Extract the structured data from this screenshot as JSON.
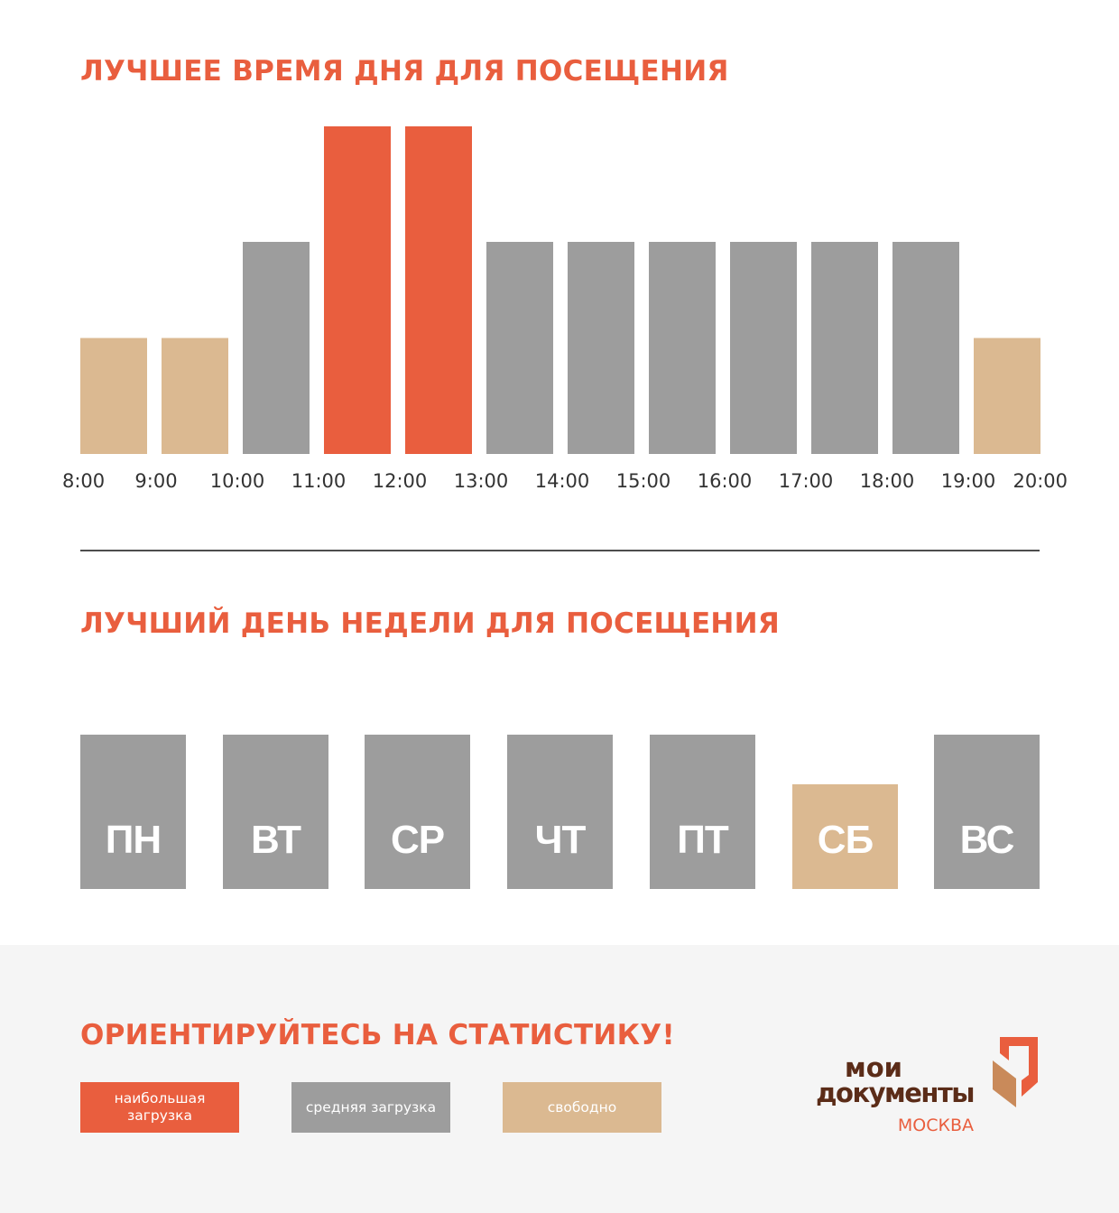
{
  "colors": {
    "accent": "#e95e3e",
    "busiest": "#e95e3e",
    "average": "#9d9d9d",
    "free": "#dbb991",
    "axis_text": "#333333",
    "divider": "#4d4d4d",
    "footer_bg": "#f5f5f5",
    "logo_brown": "#5b2c18",
    "logo_orange": "#e95e3e"
  },
  "hourly": {
    "title": "ЛУЧШЕЕ ВРЕМЯ ДНЯ ДЛЯ ПОСЕЩЕНИЯ"
  },
  "weekly": {
    "title": "ЛУЧШИЙ ДЕНЬ НЕДЕЛИ ДЛЯ ПОСЕЩЕНИЯ"
  },
  "footer": {
    "heading": "ОРИЕНТИРУЙТЕСЬ НА СТАТИСТИКУ!",
    "legend": [
      {
        "label": "наибольшая загрузка",
        "level": "busiest",
        "color": "#e95e3e"
      },
      {
        "label": "средняя загрузка",
        "level": "average",
        "color": "#9d9d9d"
      },
      {
        "label": "свободно",
        "level": "free",
        "color": "#dbb991"
      }
    ]
  },
  "logo": {
    "line1": "МОИ",
    "line2": "ДОКУМЕНТЫ",
    "city": "МОСКВА"
  },
  "chart_data": [
    {
      "type": "bar",
      "title": "ЛУЧШЕЕ ВРЕМЯ ДНЯ ДЛЯ ПОСЕЩЕНИЯ",
      "xlabel": "",
      "ylabel": "",
      "x_ticks": [
        "8:00",
        "9:00",
        "10:00",
        "11:00",
        "12:00",
        "13:00",
        "14:00",
        "15:00",
        "16:00",
        "17:00",
        "18:00",
        "19:00",
        "20:00"
      ],
      "categories": [
        "8:00–9:00",
        "9:00–10:00",
        "10:00–11:00",
        "11:00–12:00",
        "12:00–13:00",
        "13:00–14:00",
        "14:00–15:00",
        "15:00–16:00",
        "16:00–17:00",
        "17:00–18:00",
        "18:00–19:00",
        "19:00–20:00"
      ],
      "values": [
        1,
        1,
        2,
        3,
        3,
        2,
        2,
        2,
        2,
        2,
        2,
        1
      ],
      "levels": [
        "free",
        "free",
        "average",
        "busiest",
        "busiest",
        "average",
        "average",
        "average",
        "average",
        "average",
        "average",
        "free"
      ],
      "ylim": [
        0,
        3
      ],
      "grid": false,
      "legend": "bottom-left"
    },
    {
      "type": "bar",
      "title": "ЛУЧШИЙ ДЕНЬ НЕДЕЛИ ДЛЯ ПОСЕЩЕНИЯ",
      "categories": [
        "ПН",
        "ВТ",
        "СР",
        "ЧТ",
        "ПТ",
        "СБ",
        "ВС"
      ],
      "values": [
        2,
        2,
        2,
        2,
        2,
        1,
        2
      ],
      "levels": [
        "average",
        "average",
        "average",
        "average",
        "average",
        "free",
        "average"
      ],
      "ylim": [
        0,
        2
      ],
      "grid": false,
      "legend": "bottom-left"
    }
  ]
}
